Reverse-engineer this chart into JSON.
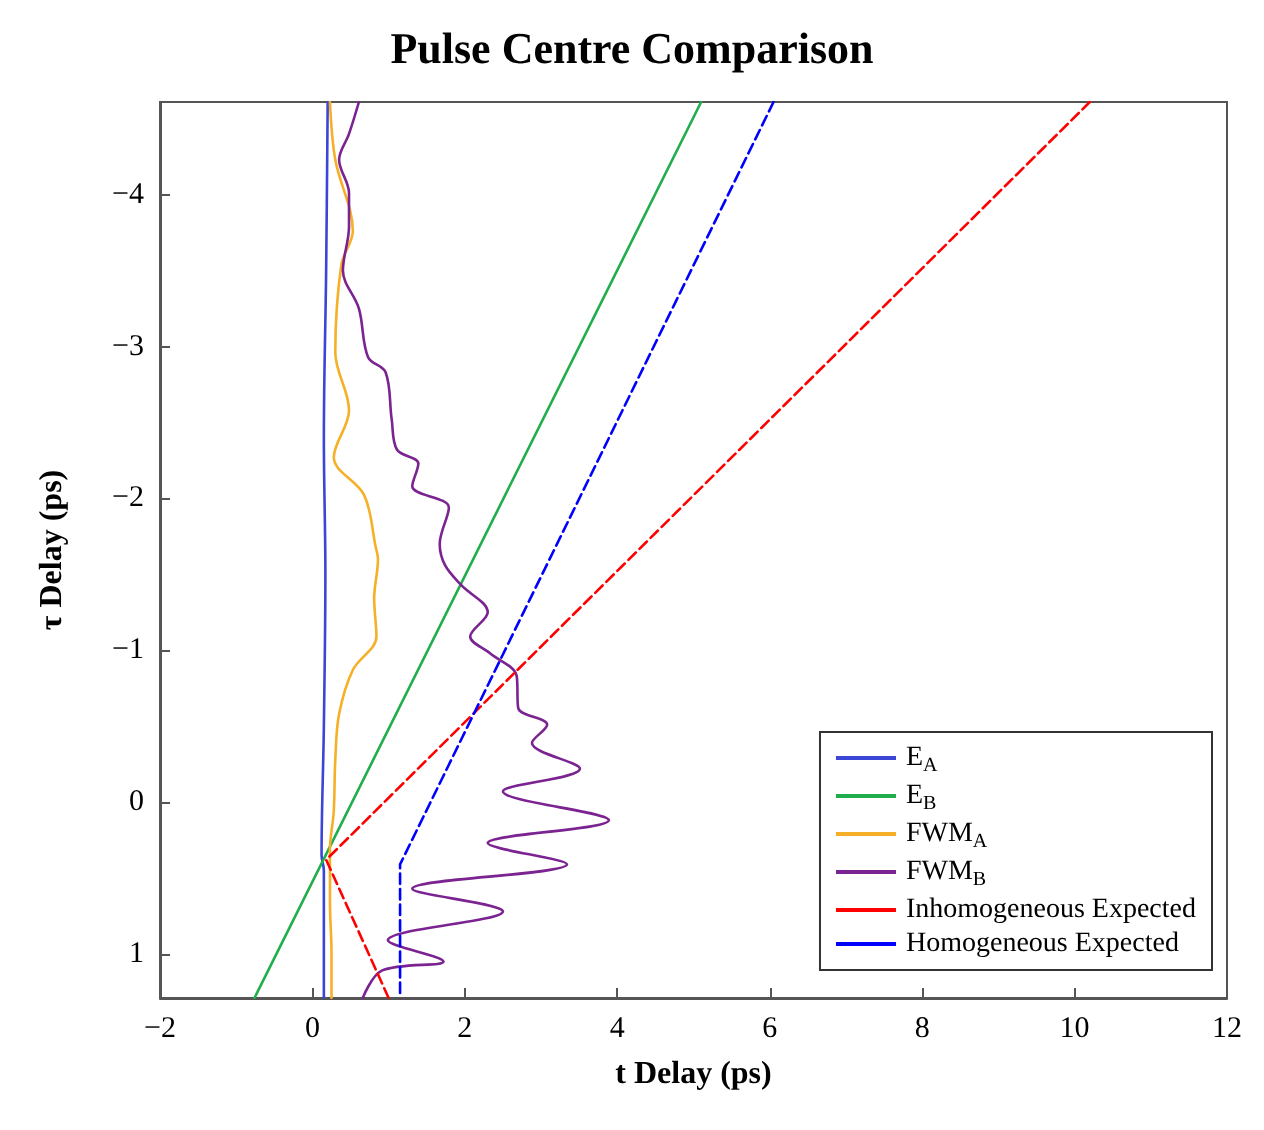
{
  "chart_data": {
    "type": "line",
    "title": "Pulse Centre Comparison",
    "xlabel": "t Delay (ps)",
    "ylabel": "τ Delay (ps)",
    "xlim": [
      -2,
      12
    ],
    "xticks": [
      -2,
      0,
      2,
      4,
      6,
      8,
      10,
      12
    ],
    "ylim": [
      1.29,
      -4.61
    ],
    "yticks": [
      -4,
      -3,
      -2,
      -1,
      0,
      1
    ],
    "grid": false,
    "legend": "bottom right",
    "line_style": "solid",
    "series": [
      {
        "name": "E$_{A}$",
        "color": "#3b45d6",
        "x": [
          0.2,
          0.18,
          0.15,
          0.17,
          0.15,
          0.12,
          0.15,
          0.15
        ],
        "values": [
          -4.61,
          -3.5,
          -2.4,
          -1.5,
          -0.5,
          0.35,
          0.45,
          1.29
        ]
      },
      {
        "name": "E$_{B}$",
        "color": "#1fae4b",
        "x": [
          5.1,
          -0.76
        ],
        "values": [
          -4.61,
          1.29
        ]
      },
      {
        "name": "FWM$_{A}$",
        "color": "#f5b027",
        "x": [
          0.23,
          0.3,
          0.53,
          0.38,
          0.3,
          0.48,
          0.28,
          0.68,
          0.83,
          0.86,
          0.81,
          0.84,
          0.53,
          0.35,
          0.3,
          0.28,
          0.23,
          0.23,
          0.25,
          0.25
        ],
        "values": [
          -4.61,
          -4.23,
          -3.76,
          -3.54,
          -2.96,
          -2.58,
          -2.27,
          -2.02,
          -1.68,
          -1.6,
          -1.34,
          -1.09,
          -0.87,
          -0.58,
          -0.28,
          0.06,
          0.31,
          0.66,
          0.99,
          1.29
        ]
      },
      {
        "name": "FWM$_{B}$",
        "color": "#7b2390",
        "x": [
          0.61,
          0.48,
          0.35,
          0.48,
          0.48,
          0.4,
          0.61,
          0.73,
          0.96,
          1.04,
          1.11,
          1.39,
          1.31,
          1.79,
          1.67,
          1.74,
          1.95,
          2.3,
          2.07,
          2.33,
          2.68,
          2.7,
          3.08,
          2.88,
          3.51,
          2.5,
          3.89,
          2.3,
          3.34,
          1.31,
          2.5,
          0.99,
          1.72,
          0.91,
          0.66
        ],
        "values": [
          -4.61,
          -4.4,
          -4.23,
          -4.01,
          -3.79,
          -3.5,
          -3.25,
          -2.93,
          -2.83,
          -2.52,
          -2.32,
          -2.23,
          -2.08,
          -1.94,
          -1.7,
          -1.56,
          -1.43,
          -1.25,
          -1.09,
          -0.98,
          -0.83,
          -0.62,
          -0.51,
          -0.39,
          -0.22,
          -0.07,
          0.12,
          0.27,
          0.41,
          0.57,
          0.72,
          0.91,
          1.05,
          1.11,
          1.29
        ]
      },
      {
        "name": "Inhomogeneous Expected",
        "color": "#ff0000",
        "line_style": "dashed",
        "x": [
          10.2,
          0.18,
          1.0
        ],
        "values": [
          -4.61,
          0.38,
          1.29
        ]
      },
      {
        "name": "Homogeneous Expected",
        "color": "#0000ff",
        "line_style": "dashed",
        "x": [
          6.05,
          1.15,
          1.15
        ],
        "values": [
          -4.61,
          0.41,
          1.29
        ]
      }
    ]
  }
}
